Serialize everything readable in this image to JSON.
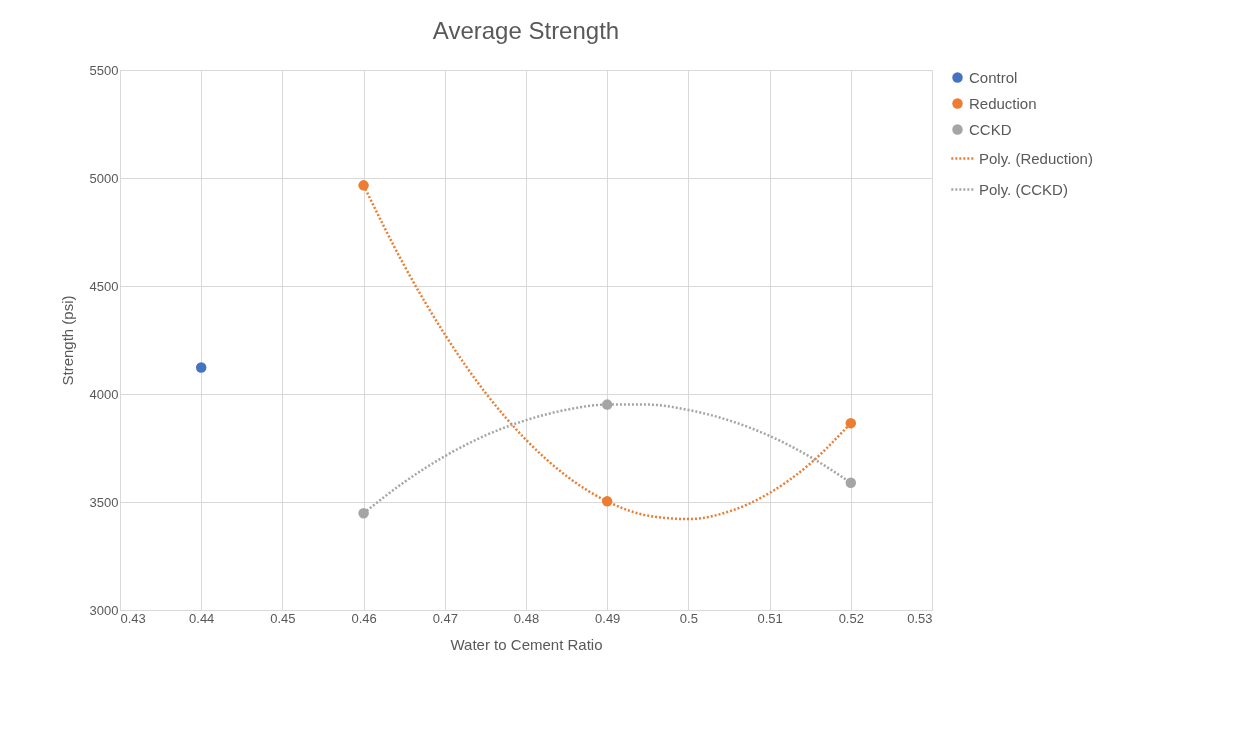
{
  "chart_data": {
    "type": "scatter",
    "title": "Average Strength",
    "xlabel": "Water to Cement Ratio",
    "ylabel": "Strength (psi)",
    "xlim": [
      0.43,
      0.53
    ],
    "xticks": [
      0.43,
      0.44,
      0.45,
      0.46,
      0.47,
      0.48,
      0.49,
      0.5,
      0.51,
      0.52,
      0.53
    ],
    "ylim": [
      3000,
      5500
    ],
    "yticks": [
      3000,
      3500,
      4000,
      4500,
      5000,
      5500
    ],
    "grid": true,
    "legend": "right",
    "series": [
      {
        "name": "Control",
        "color": "#4472c4",
        "x": [
          0.44
        ],
        "values": [
          4123
        ]
      },
      {
        "name": "Reduction",
        "color": "#ed7d31",
        "x": [
          0.46,
          0.49,
          0.52
        ],
        "values": [
          4966,
          3503,
          3865
        ]
      },
      {
        "name": "CCKD",
        "color": "#a5a5a5",
        "x": [
          0.46,
          0.49,
          0.52
        ],
        "values": [
          3448,
          3951,
          3589
        ]
      },
      {
        "name": "Poly. (Reduction)",
        "type": "line",
        "line_style": "dotted",
        "color": "#ed7d31",
        "x": [
          0.46,
          0.465,
          0.47,
          0.475,
          0.48,
          0.485,
          0.49,
          0.495,
          0.5,
          0.505,
          0.51,
          0.515,
          0.52
        ],
        "values": [
          4966,
          4595,
          4276,
          4006,
          3788,
          3620,
          3503,
          3437,
          3421,
          3456,
          3542,
          3678,
          3865
        ]
      },
      {
        "name": "Poly. (CCKD)",
        "type": "line",
        "line_style": "dotted",
        "color": "#a5a5a5",
        "x": [
          0.46,
          0.465,
          0.47,
          0.475,
          0.48,
          0.485,
          0.49,
          0.495,
          0.5,
          0.505,
          0.51,
          0.515,
          0.52
        ],
        "values": [
          3448,
          3592,
          3712,
          3808,
          3879,
          3927,
          3951,
          3951,
          3926,
          3878,
          3806,
          3709,
          3589
        ]
      }
    ]
  }
}
